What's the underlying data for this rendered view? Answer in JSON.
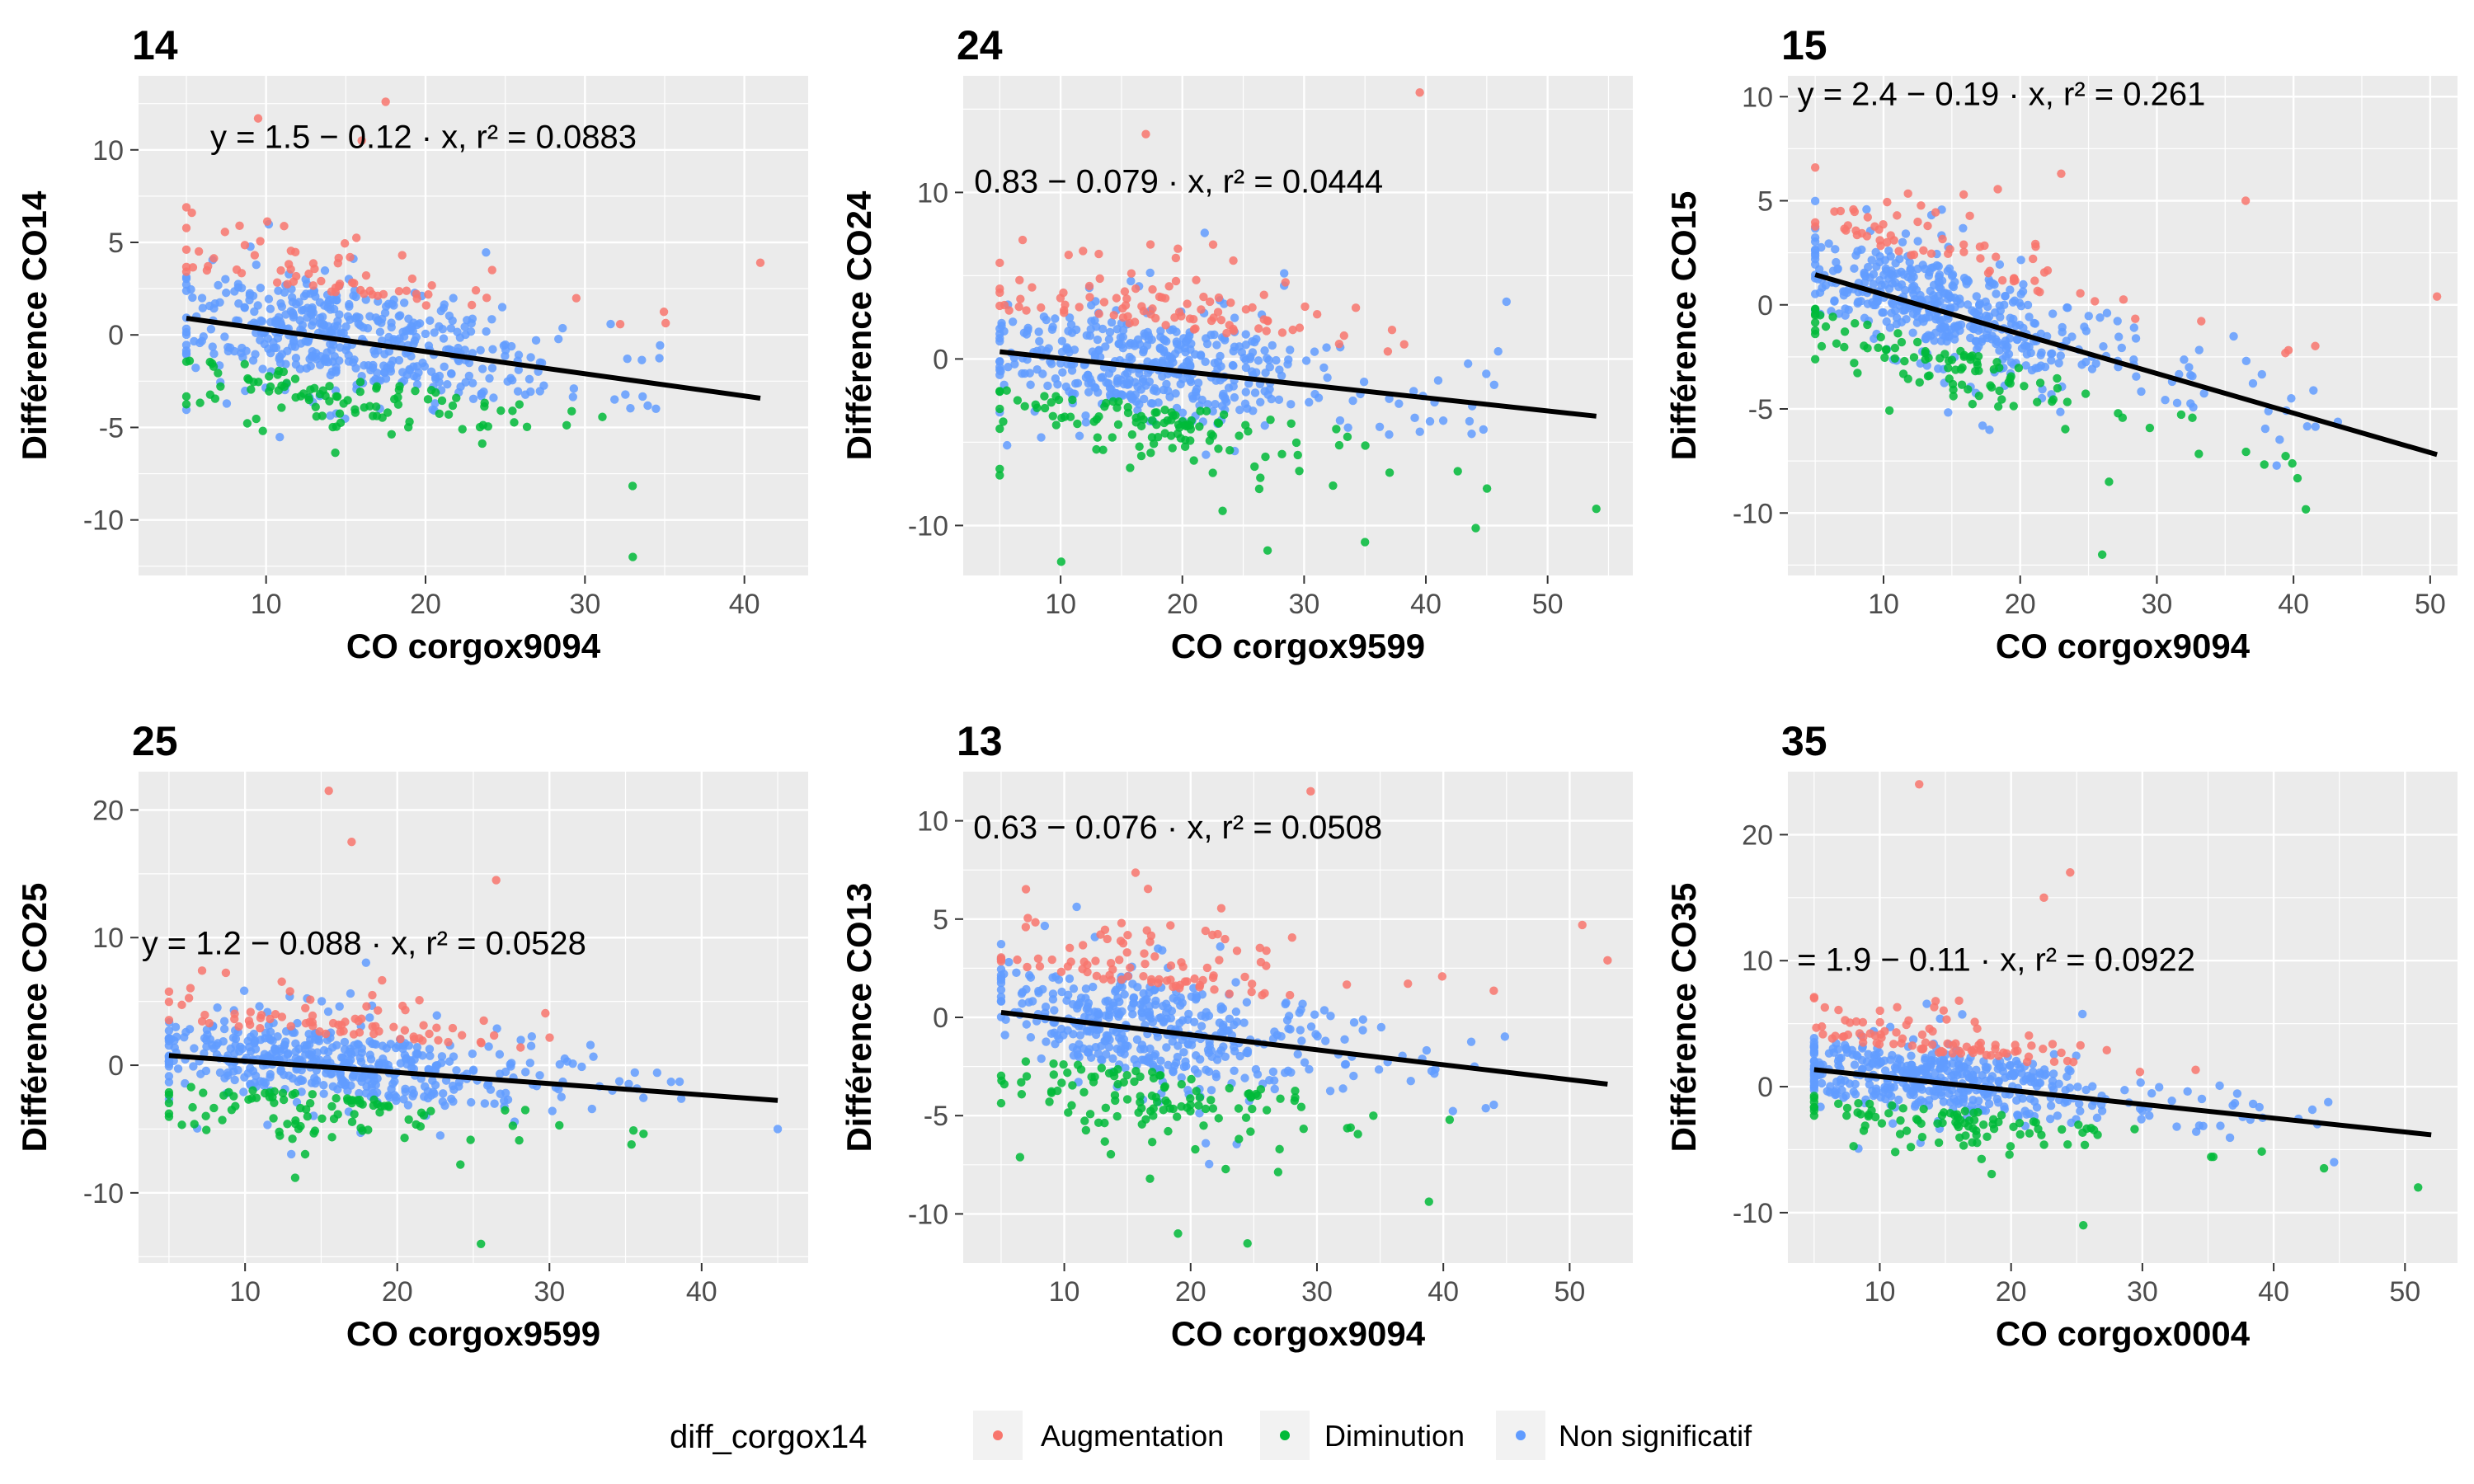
{
  "chart_data": [
    {
      "type": "scatter",
      "title": "14",
      "xlabel": "CO corgox9094",
      "ylabel": "Différence CO14",
      "xlim": [
        2,
        44
      ],
      "ylim": [
        -13,
        14
      ],
      "xticks": [
        10,
        20,
        30,
        40
      ],
      "yticks": [
        -10,
        -5,
        0,
        5,
        10
      ],
      "fit": {
        "intercept": 1.5,
        "slope": -0.12,
        "x_range": [
          5,
          41
        ]
      },
      "equation": "y = 1.5 − 0.12 · x,  r² = 0.0883",
      "equation_pos": {
        "x": 6.5,
        "y": 10.1
      },
      "cloud": {
        "seed": 14,
        "n": 650,
        "x_mean": 14.5,
        "x_sd": 5.5,
        "x_min": 5,
        "x_max": 41,
        "sd": 2.4,
        "up_thr": 2.5,
        "down_thr": -2.0
      },
      "outliers": [
        [
          17.5,
          12.6
        ],
        [
          16,
          10.5
        ],
        [
          9.5,
          11.7
        ],
        [
          41,
          3.9
        ],
        [
          33,
          -12
        ]
      ]
    },
    {
      "type": "scatter",
      "title": "24",
      "xlabel": "CO corgox9599",
      "ylabel": "Différence CO24",
      "xlim": [
        2,
        57
      ],
      "ylim": [
        -13,
        17
      ],
      "xticks": [
        10,
        20,
        30,
        40,
        50
      ],
      "yticks": [
        -10,
        0,
        10
      ],
      "fit": {
        "intercept": 0.83,
        "slope": -0.079,
        "x_range": [
          5,
          54
        ]
      },
      "equation": "0.83 − 0.079 · x,  r² = 0.0444",
      "equation_pos": {
        "x": 2.9,
        "y": 10
      },
      "cloud": {
        "seed": 24,
        "n": 650,
        "x_mean": 17,
        "x_sd": 6.5,
        "x_min": 5,
        "x_max": 54,
        "sd": 2.7,
        "up_thr": 2.5,
        "down_thr": -2.2
      },
      "outliers": [
        [
          39.5,
          16
        ],
        [
          17,
          13.5
        ],
        [
          54,
          -9
        ],
        [
          27,
          -11.5
        ],
        [
          35,
          -11
        ]
      ]
    },
    {
      "type": "scatter",
      "title": "15",
      "xlabel": "CO corgox9094",
      "ylabel": "Différence CO15",
      "xlim": [
        3,
        52
      ],
      "ylim": [
        -13,
        11
      ],
      "xticks": [
        10,
        20,
        30,
        40,
        50
      ],
      "yticks": [
        -10,
        -5,
        0,
        5,
        10
      ],
      "fit": {
        "intercept": 2.4,
        "slope": -0.19,
        "x_range": [
          5,
          50.5
        ]
      },
      "equation": "y = 2.4 − 0.19 · x,  r² = 0.261",
      "equation_pos": {
        "x": 3.7,
        "y": 9.6
      },
      "cloud": {
        "seed": 15,
        "n": 650,
        "x_mean": 14,
        "x_sd": 5.5,
        "x_min": 5,
        "x_max": 50,
        "sd": 2.0,
        "up_thr": 2.2,
        "down_thr": -1.6
      },
      "outliers": [
        [
          50.5,
          0.4
        ],
        [
          26,
          -12
        ],
        [
          23,
          6.3
        ],
        [
          36.5,
          5
        ],
        [
          26.5,
          -8.5
        ]
      ]
    },
    {
      "type": "scatter",
      "title": "25",
      "xlabel": "CO corgox9599",
      "ylabel": "Différence CO25",
      "xlim": [
        3,
        47
      ],
      "ylim": [
        -15.5,
        23
      ],
      "xticks": [
        10,
        20,
        30,
        40
      ],
      "yticks": [
        -10,
        0,
        10,
        20
      ],
      "fit": {
        "intercept": 1.2,
        "slope": -0.088,
        "x_range": [
          5,
          45
        ]
      },
      "equation": "y = 1.2 − 0.088 · x,  r² = 0.0528",
      "equation_pos": {
        "x": 3.2,
        "y": 8.7
      },
      "cloud": {
        "seed": 25,
        "n": 650,
        "x_mean": 15,
        "x_sd": 6,
        "x_min": 5,
        "x_max": 45,
        "sd": 2.5,
        "up_thr": 2.6,
        "down_thr": -2.2
      },
      "outliers": [
        [
          15.5,
          21.5
        ],
        [
          17,
          17.5
        ],
        [
          26.5,
          14.5
        ],
        [
          25.5,
          -14
        ],
        [
          45,
          -5
        ]
      ]
    },
    {
      "type": "scatter",
      "title": "13",
      "xlabel": "CO corgox9094",
      "ylabel": "Différence CO13",
      "xlim": [
        2,
        55
      ],
      "ylim": [
        -12.5,
        12.5
      ],
      "xticks": [
        10,
        20,
        30,
        40,
        50
      ],
      "yticks": [
        -10,
        -5,
        0,
        5,
        10
      ],
      "fit": {
        "intercept": 0.63,
        "slope": -0.076,
        "x_range": [
          5,
          53
        ]
      },
      "equation": "0.63 − 0.076 · x,  r² = 0.0508",
      "equation_pos": {
        "x": 2.8,
        "y": 9.1
      },
      "cloud": {
        "seed": 13,
        "n": 650,
        "x_mean": 16,
        "x_sd": 6,
        "x_min": 5,
        "x_max": 53,
        "sd": 2.5,
        "up_thr": 2.3,
        "down_thr": -2.1
      },
      "outliers": [
        [
          29.5,
          11.5
        ],
        [
          51,
          4.7
        ],
        [
          53,
          2.9
        ],
        [
          24.5,
          -11.5
        ],
        [
          19,
          -11
        ]
      ]
    },
    {
      "type": "scatter",
      "title": "35",
      "xlabel": "CO corgox0004",
      "ylabel": "Différence CO35",
      "xlim": [
        3,
        54
      ],
      "ylim": [
        -14,
        25
      ],
      "xticks": [
        10,
        20,
        30,
        40,
        50
      ],
      "yticks": [
        -10,
        0,
        10,
        20
      ],
      "fit": {
        "intercept": 1.9,
        "slope": -0.11,
        "x_range": [
          5,
          52
        ]
      },
      "equation": "= 1.9 − 0.11 · x,  r² = 0.0922",
      "equation_pos": {
        "x": 3.7,
        "y": 9.2
      },
      "cloud": {
        "seed": 35,
        "n": 650,
        "x_mean": 14,
        "x_sd": 6,
        "x_min": 5,
        "x_max": 52,
        "sd": 2.3,
        "up_thr": 2.4,
        "down_thr": -2.0
      },
      "outliers": [
        [
          13,
          24
        ],
        [
          24.5,
          17
        ],
        [
          22.5,
          15
        ],
        [
          25.5,
          -11
        ],
        [
          51,
          -8
        ]
      ]
    }
  ],
  "legend": {
    "title": "diff_corgox14",
    "entries": [
      {
        "label": "Augmentation",
        "color": "#f8766d"
      },
      {
        "label": "Diminution",
        "color": "#00ba38"
      },
      {
        "label": "Non significatif",
        "color": "#619cff"
      }
    ]
  },
  "colors": {
    "panel_background": "#ebebeb",
    "grid_major": "#ffffff",
    "fit_line": "#000000",
    "tick_text": "#4d4d4d"
  }
}
